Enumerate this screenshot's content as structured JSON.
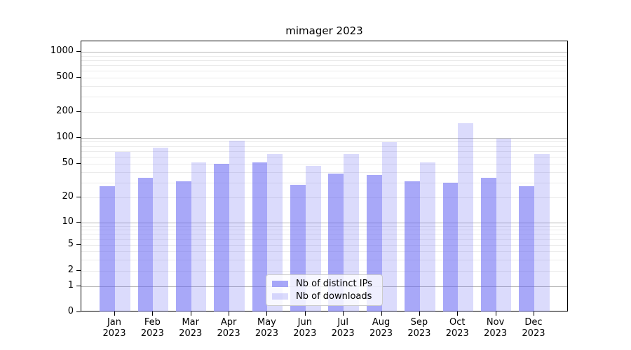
{
  "title": "mimager 2023",
  "chart_data": {
    "type": "bar",
    "title": "mimager 2023",
    "categories": [
      "Jan",
      "Feb",
      "Mar",
      "Apr",
      "May",
      "Jun",
      "Jul",
      "Aug",
      "Sep",
      "Oct",
      "Nov",
      "Dec"
    ],
    "category_year": "2023",
    "series": [
      {
        "name": "Nb of distinct IPs",
        "color": "rgba(102,102,242,0.57)",
        "values": [
          27,
          34,
          31,
          50,
          52,
          28,
          38,
          37,
          31,
          30,
          34,
          27
        ]
      },
      {
        "name": "Nb of downloads",
        "color": "rgba(102,102,242,0.235)",
        "values": [
          68,
          76,
          52,
          92,
          65,
          47,
          65,
          89,
          52,
          148,
          97,
          65
        ]
      }
    ],
    "y_axis": {
      "scale": "log-with-zero",
      "tick_labels": [
        "0",
        "1",
        "2",
        "5",
        "10",
        "20",
        "50",
        "100",
        "200",
        "500",
        "1000"
      ],
      "tick_values": [
        0,
        1,
        2,
        5,
        10,
        20,
        50,
        100,
        200,
        500,
        1000
      ],
      "ylim": [
        0,
        1400
      ]
    },
    "x_axis": {
      "label": "",
      "tick_format": "month-newline-year"
    },
    "grid": true,
    "legend_position": "lower-center",
    "colors": {
      "major_gridline": "#b6b6b6",
      "minor_gridline": "#ebebeb",
      "spine": "#000000",
      "ips_bar_on_white": "#a8a8f7",
      "downloads_bar_on_white": "#dbdbfa"
    }
  }
}
